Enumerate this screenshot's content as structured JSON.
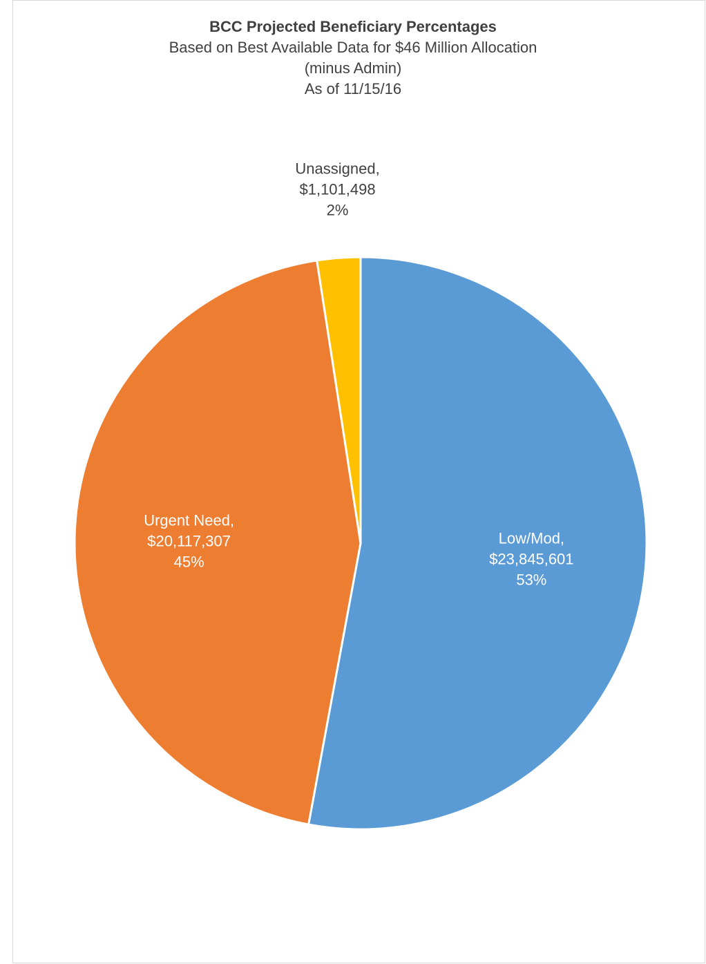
{
  "chart_data": {
    "type": "pie",
    "title": "BCC Projected Beneficiary Percentages",
    "subtitle_lines": [
      "Based on Best Available Data for $46 Million Allocation",
      "(minus Admin)",
      "As of 11/15/16"
    ],
    "start_angle": "12 o'clock",
    "direction": "clockwise",
    "slices": [
      {
        "label": "Low/Mod",
        "value": 23845601,
        "value_text": "$23,845,601",
        "percent_text": "53%",
        "color": "#5b9bd5",
        "label_color": "#ffffff"
      },
      {
        "label": "Urgent Need",
        "value": 20117307,
        "value_text": "$20,117,307",
        "percent_text": "45%",
        "color": "#ed7d31",
        "label_color": "#ffffff"
      },
      {
        "label": "Unassigned",
        "value": 1101498,
        "value_text": "$1,101,498",
        "percent_text": "2%",
        "color": "#ffc000",
        "label_color": "#404040"
      }
    ]
  }
}
